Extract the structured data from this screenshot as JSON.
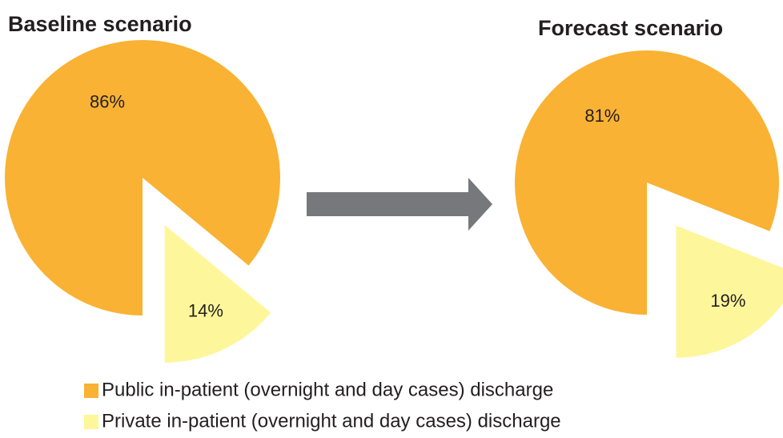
{
  "chart_data": [
    {
      "type": "pie",
      "title": "Baseline scenario",
      "categories": [
        "Public in-patient (overnight and day cases) discharge",
        "Private in-patient (overnight and day cases) discharge"
      ],
      "values": [
        86,
        14
      ],
      "value_labels": [
        "86%",
        "14%"
      ],
      "colors": [
        "#f9b233",
        "#fef69a"
      ]
    },
    {
      "type": "pie",
      "title": "Forecast scenario",
      "categories": [
        "Public in-patient (overnight and day cases) discharge",
        "Private in-patient (overnight and day cases) discharge"
      ],
      "values": [
        81,
        19
      ],
      "value_labels": [
        "81%",
        "19%"
      ],
      "colors": [
        "#f9b233",
        "#fef69a"
      ]
    }
  ]
}
